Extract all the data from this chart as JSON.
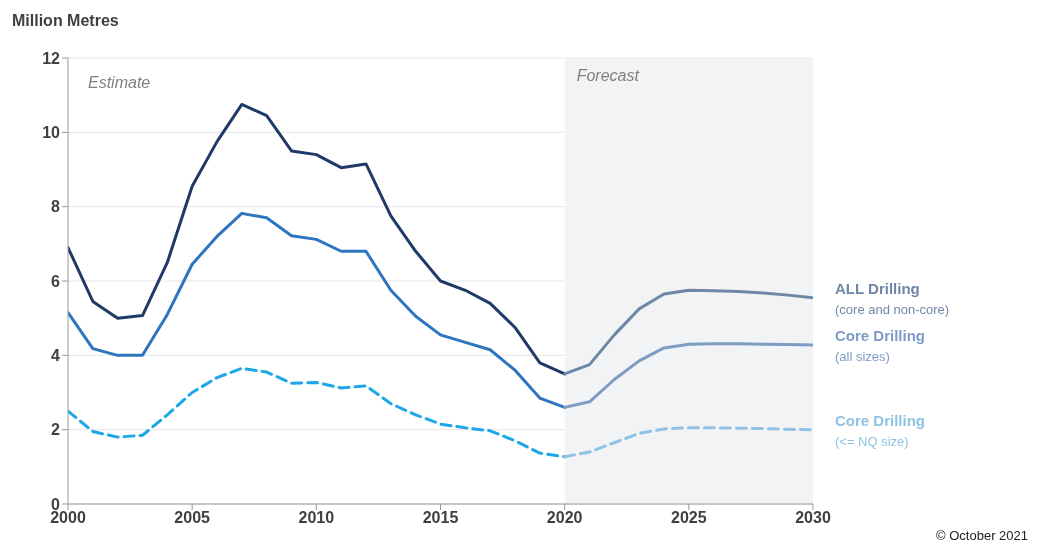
{
  "chart_data": {
    "type": "line",
    "ylabel": "Million Metres",
    "xlim": [
      2000,
      2030
    ],
    "xticks": [
      2000,
      2005,
      2010,
      2015,
      2020,
      2025,
      2030
    ],
    "ylim": [
      0,
      12
    ],
    "yticks": [
      0,
      2,
      4,
      6,
      8,
      10,
      12
    ],
    "grid": "y",
    "marker": "none",
    "bands": [
      {
        "axis": "x",
        "from": 2020,
        "to": 2030,
        "label": "Forecast",
        "color": "#f2f3f5"
      }
    ],
    "annotations": [
      "Estimate",
      "© October 2021"
    ],
    "series": [
      {
        "color": "#1f3a68",
        "line_style": "solid",
        "x": [
          2000,
          2001,
          2002,
          2003,
          2004,
          2005,
          2006,
          2007,
          2008,
          2009,
          2010,
          2011,
          2012,
          2013,
          2014,
          2015,
          2016,
          2017,
          2018,
          2019,
          2020
        ],
        "values": [
          6.9,
          5.45,
          5.0,
          5.07,
          6.5,
          8.55,
          9.75,
          10.75,
          10.45,
          9.5,
          9.4,
          9.05,
          9.15,
          7.75,
          6.8,
          6.0,
          5.75,
          5.4,
          4.75,
          3.8,
          3.5
        ]
      },
      {
        "name": "ALL Drilling\n(core and non-core)",
        "color": "#6f87a6",
        "line_style": "solid",
        "x": [
          2020,
          2021,
          2022,
          2023,
          2024,
          2025,
          2026,
          2027,
          2028,
          2029,
          2030
        ],
        "values": [
          3.5,
          3.75,
          4.55,
          5.25,
          5.65,
          5.75,
          5.74,
          5.72,
          5.68,
          5.62,
          5.55
        ]
      },
      {
        "color": "#2e75c0",
        "line_style": "solid",
        "x": [
          2000,
          2001,
          2002,
          2003,
          2004,
          2005,
          2006,
          2007,
          2008,
          2009,
          2010,
          2011,
          2012,
          2013,
          2014,
          2015,
          2016,
          2017,
          2018,
          2019,
          2020
        ],
        "values": [
          5.15,
          4.18,
          4.0,
          4.0,
          5.1,
          6.45,
          7.2,
          7.82,
          7.7,
          7.22,
          7.12,
          6.8,
          6.8,
          5.75,
          5.05,
          4.55,
          4.35,
          4.15,
          3.6,
          2.85,
          2.6
        ]
      },
      {
        "name": "Core Drilling\n(all sizes)",
        "color": "#7d9cc4",
        "line_style": "solid",
        "x": [
          2020,
          2021,
          2022,
          2023,
          2024,
          2025,
          2026,
          2027,
          2028,
          2029,
          2030
        ],
        "values": [
          2.6,
          2.75,
          3.35,
          3.85,
          4.2,
          4.3,
          4.31,
          4.31,
          4.3,
          4.29,
          4.28
        ]
      },
      {
        "color": "#1ea7e8",
        "line_style": "dashed",
        "x": [
          2000,
          2001,
          2002,
          2003,
          2004,
          2005,
          2006,
          2007,
          2008,
          2009,
          2010,
          2011,
          2012,
          2013,
          2014,
          2015,
          2016,
          2017,
          2018,
          2019,
          2020
        ],
        "values": [
          2.5,
          1.95,
          1.8,
          1.85,
          2.4,
          3.0,
          3.4,
          3.65,
          3.55,
          3.25,
          3.27,
          3.12,
          3.18,
          2.7,
          2.4,
          2.15,
          2.05,
          1.97,
          1.7,
          1.37,
          1.27
        ]
      },
      {
        "name": "Core Drilling\n(<= NQ size)",
        "color": "#8fc3e3",
        "line_style": "dashed",
        "x": [
          2020,
          2021,
          2022,
          2023,
          2024,
          2025,
          2026,
          2027,
          2028,
          2029,
          2030
        ],
        "values": [
          1.27,
          1.4,
          1.65,
          1.9,
          2.02,
          2.05,
          2.05,
          2.04,
          2.03,
          2.01,
          2.0
        ]
      }
    ]
  }
}
